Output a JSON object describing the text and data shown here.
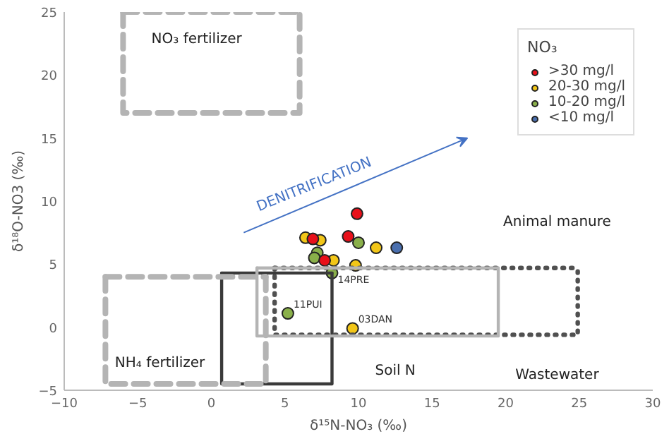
{
  "chart_data": {
    "type": "scatter",
    "xlabel": "δ¹⁵N-NO₃ (‰)",
    "ylabel": "δ¹⁸O-NO3 (‰)",
    "legend_title": "NO₃",
    "xlim": [
      -10,
      30
    ],
    "ylim": [
      -5,
      25
    ],
    "xticks": [
      -10,
      -5,
      0,
      5,
      10,
      15,
      20,
      25,
      30
    ],
    "yticks": [
      -5,
      0,
      5,
      10,
      15,
      20,
      25
    ],
    "grid": false,
    "legend": "top right",
    "series": [
      {
        "type": "line",
        "marker": "none",
        "line_style": "dashed",
        "color": "#b4b4b4",
        "x": [
          -6,
          -6,
          6,
          6
        ],
        "values": [
          25,
          17,
          17,
          25
        ]
      },
      {
        "type": "line",
        "marker": "none",
        "line_style": "dashed",
        "color": "#b4b4b4",
        "x": [
          -6,
          6
        ],
        "values": [
          25,
          25
        ]
      },
      {
        "type": "line",
        "marker": "none",
        "line_style": "dashed",
        "color": "#b4b4b4",
        "x": [
          -7.2,
          -7.2,
          3.7,
          3.7
        ],
        "values": [
          4,
          -4.5,
          -4.5,
          4
        ]
      },
      {
        "type": "line",
        "marker": "none",
        "line_style": "dashed",
        "color": "#b4b4b4",
        "x": [
          -7.2,
          3.7
        ],
        "values": [
          4,
          4
        ]
      },
      {
        "type": "line",
        "marker": "none",
        "line_style": "solid",
        "color": "#b4b4b4",
        "x": [
          3.1,
          3.1,
          19.5,
          19.5
        ],
        "values": [
          4.7,
          -0.7,
          -0.7,
          4.7
        ]
      },
      {
        "type": "line",
        "marker": "none",
        "line_style": "solid",
        "color": "#b4b4b4",
        "x": [
          3.1,
          19.5
        ],
        "values": [
          4.7,
          4.7
        ]
      },
      {
        "type": "line",
        "marker": "none",
        "line_style": "dotted",
        "color": "#505050",
        "x": [
          4.3,
          4.3,
          24.9,
          24.9
        ],
        "values": [
          4.7,
          -0.6,
          -0.6,
          4.7
        ]
      },
      {
        "type": "line",
        "marker": "none",
        "line_style": "dotted",
        "color": "#505050",
        "x": [
          4.3,
          24.9
        ],
        "values": [
          4.7,
          4.7
        ]
      },
      {
        "type": "line",
        "marker": "none",
        "line_style": "solid",
        "color": "#3a3a3a",
        "x": [
          0.7,
          0.7,
          8.2,
          8.2
        ],
        "values": [
          4.3,
          -4.5,
          -4.5,
          4.3
        ]
      },
      {
        "type": "line",
        "marker": "none",
        "line_style": "solid",
        "color": "#3a3a3a",
        "x": [
          0.7,
          8.2
        ],
        "values": [
          4.3,
          4.3
        ]
      },
      {
        "name": ">30 mg/l",
        "marker": "circle",
        "color": "#e8101a",
        "x": [
          9.9,
          9.3,
          6.9,
          7.7
        ],
        "values": [
          9.0,
          7.2,
          7.0,
          5.3
        ]
      },
      {
        "name": "20-30 mg/l",
        "marker": "circle",
        "color": "#f2c618",
        "x": [
          6.4,
          7.4,
          11.2,
          8.3,
          9.8,
          9.6
        ],
        "values": [
          7.1,
          6.9,
          6.3,
          5.3,
          4.9,
          -0.1
        ]
      },
      {
        "name": "10-20 mg/l",
        "marker": "circle",
        "color": "#8ab04a",
        "x": [
          7.2,
          7.0,
          10.0,
          8.2,
          5.2
        ],
        "values": [
          5.9,
          5.5,
          6.7,
          4.3,
          1.1
        ]
      },
      {
        "name": "<10 mg/l",
        "marker": "circle",
        "color": "#4a6fae",
        "x": [
          12.6
        ],
        "values": [
          6.3
        ]
      }
    ],
    "annotations": [
      "NO₃ fertilizer",
      "NH₄ fertilizer",
      "Soil N",
      "Animal manure",
      "Wastewater",
      "DENITRIFICATION",
      {
        "text": "14PRE",
        "x": 8.2,
        "y": 4.3
      },
      {
        "text": "11PUI",
        "x": 5.2,
        "y": 1.1
      },
      {
        "text": "03DAN",
        "x": 9.6,
        "y": -0.1
      }
    ]
  }
}
